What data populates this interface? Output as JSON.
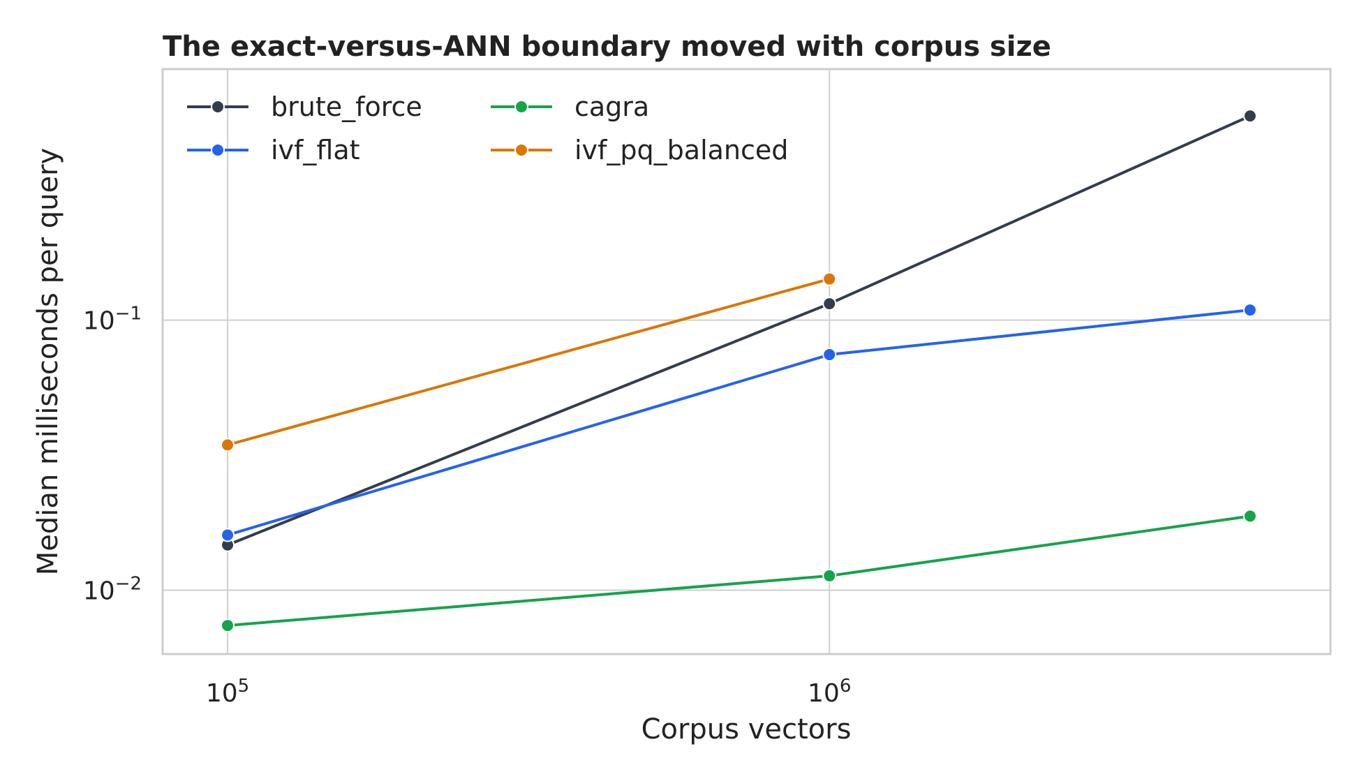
{
  "chart_data": {
    "type": "line",
    "title": "The exact-versus-ANN boundary moved with corpus size",
    "xlabel": "Corpus vectors",
    "ylabel": "Median milliseconds per query",
    "x_scale": "log",
    "y_scale": "log",
    "xlim": [
      78000,
      6800000
    ],
    "ylim": [
      0.0058,
      0.85
    ],
    "x_ticks": [
      {
        "value": 100000,
        "base": "10",
        "exp": "5"
      },
      {
        "value": 1000000,
        "base": "10",
        "exp": "6"
      }
    ],
    "y_ticks": [
      {
        "value": 0.01,
        "base": "10",
        "exp": "−2"
      },
      {
        "value": 0.1,
        "base": "10",
        "exp": "−1"
      }
    ],
    "grid": true,
    "legend": {
      "placement": "top-left",
      "columns": 2
    },
    "series": [
      {
        "name": "brute_force",
        "color": "#343d4c",
        "points": [
          {
            "x": 100000,
            "y": 0.0147
          },
          {
            "x": 1000000,
            "y": 0.115
          },
          {
            "x": 5000000,
            "y": 0.57
          }
        ]
      },
      {
        "name": "cagra",
        "color": "#16a34a",
        "points": [
          {
            "x": 100000,
            "y": 0.0074
          },
          {
            "x": 1000000,
            "y": 0.0113
          },
          {
            "x": 5000000,
            "y": 0.0188
          }
        ]
      },
      {
        "name": "ivf_flat",
        "color": "#2563eb",
        "points": [
          {
            "x": 100000,
            "y": 0.016
          },
          {
            "x": 1000000,
            "y": 0.0745
          },
          {
            "x": 5000000,
            "y": 0.109
          }
        ]
      },
      {
        "name": "ivf_pq_balanced",
        "color": "#d97706",
        "points": [
          {
            "x": 100000,
            "y": 0.0345
          },
          {
            "x": 1000000,
            "y": 0.142
          }
        ]
      }
    ]
  }
}
